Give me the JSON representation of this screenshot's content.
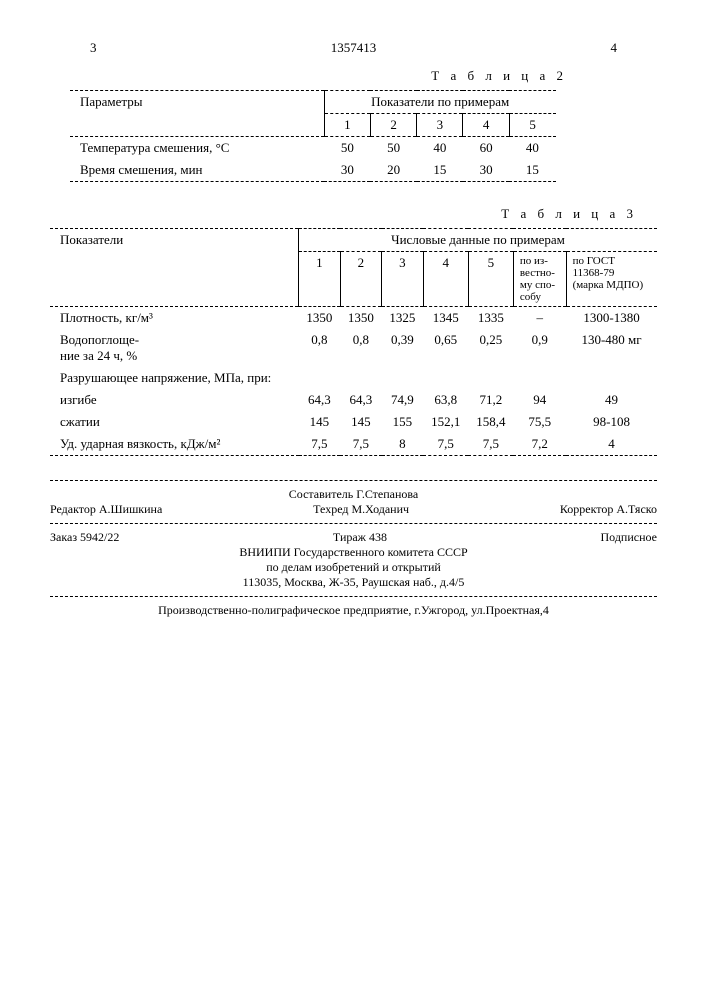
{
  "header": {
    "page_left": "3",
    "patent": "1357413",
    "page_right": "4"
  },
  "table2": {
    "title": "Т а б л и ц а  2",
    "col_param": "Параметры",
    "col_group": "Показатели по примерам",
    "cols": [
      "1",
      "2",
      "3",
      "4",
      "5"
    ],
    "rows": [
      {
        "label": "Температура смешения, °С",
        "v": [
          "50",
          "50",
          "40",
          "60",
          "40"
        ]
      },
      {
        "label": "Время смешения, мин",
        "v": [
          "30",
          "20",
          "15",
          "30",
          "15"
        ]
      }
    ]
  },
  "table3": {
    "title": "Т а б л и ц а  3",
    "col_param": "Показатели",
    "col_group": "Числовые данные по примерам",
    "cols": [
      "1",
      "2",
      "3",
      "4",
      "5"
    ],
    "col_known": "по из-\nвестно-\nму спо-\nсобу",
    "col_gost": "по ГОСТ\n11368-79\n(марка МДПО)",
    "rows": [
      {
        "label": "Плотность, кг/м³",
        "v": [
          "1350",
          "1350",
          "1325",
          "1345",
          "1335",
          "–",
          "1300-1380"
        ]
      },
      {
        "label": "Водопоглоще-\nние за 24 ч, %",
        "v": [
          "0,8",
          "0,8",
          "0,39",
          "0,65",
          "0,25",
          "0,9",
          "130-480 мг"
        ]
      },
      {
        "label": "Разрушающее напряжение, МПа, при:",
        "v": [
          "",
          "",
          "",
          "",
          "",
          "",
          ""
        ]
      },
      {
        "label": "изгибе",
        "indent": true,
        "v": [
          "64,3",
          "64,3",
          "74,9",
          "63,8",
          "71,2",
          "94",
          "49"
        ]
      },
      {
        "label": "сжатии",
        "indent": true,
        "v": [
          "145",
          "145",
          "155",
          "152,1",
          "158,4",
          "75,5",
          "98-108"
        ]
      },
      {
        "label": "Уд. ударная вязкость, кДж/м²",
        "v": [
          "7,5",
          "7,5",
          "8",
          "7,5",
          "7,5",
          "7,2",
          "4"
        ]
      }
    ]
  },
  "footer": {
    "compiler": "Составитель Г.Степанова",
    "editor": "Редактор А.Шишкина",
    "tech": "Техред М.Ходанич",
    "corrector": "Корректор А.Тяско",
    "order": "Заказ 5942/22",
    "tirazh": "Тираж 438",
    "subscription": "Подписное",
    "org1": "ВНИИПИ Государственного комитета СССР",
    "org2": "по делам изобретений и открытий",
    "addr1": "113035, Москва, Ж-35, Раушская наб., д.4/5",
    "printer": "Производственно-полиграфическое предприятие, г.Ужгород, ул.Проектная,4"
  }
}
